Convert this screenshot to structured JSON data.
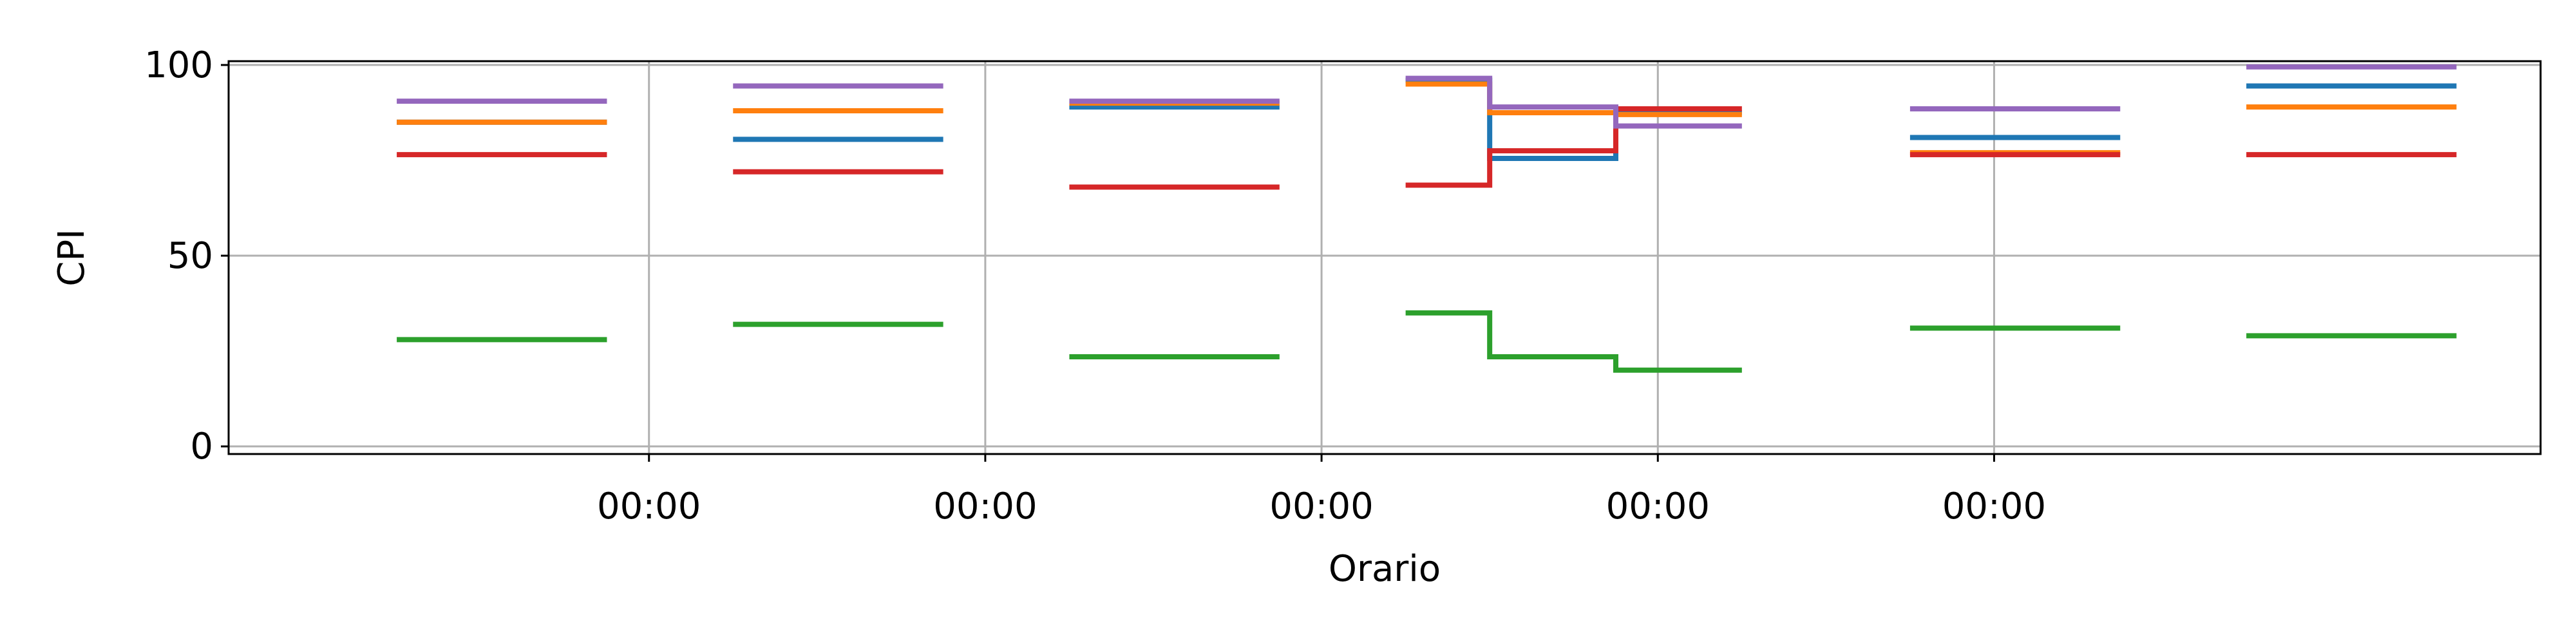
{
  "chart_data": {
    "type": "line",
    "step": true,
    "xlabel": "Orario",
    "ylabel": "CPI",
    "ylim": [
      0,
      100
    ],
    "yticks": [
      0,
      50,
      100
    ],
    "xticks": [
      "00:00",
      "00:00",
      "00:00",
      "00:00",
      "00:00"
    ],
    "grid": true,
    "colors": [
      "#1f77b4",
      "#ff7f0e",
      "#2ca02c",
      "#d62728",
      "#9467bd"
    ],
    "series": [
      {
        "segments": [
          [
            [
              -0.5,
              85
            ],
            [
              0.75,
              85
            ]
          ],
          [
            [
              1.5,
              80.5
            ],
            [
              2.75,
              80.5
            ]
          ],
          [
            [
              3.5,
              89
            ],
            [
              4.75,
              89
            ]
          ],
          [
            [
              5.5,
              96
            ],
            [
              6.0,
              96
            ],
            [
              6.0,
              75.5
            ],
            [
              6.75,
              75.5
            ],
            [
              6.75,
              87.5
            ],
            [
              7.5,
              87.5
            ]
          ],
          [
            [
              8.5,
              81
            ],
            [
              9.75,
              81
            ]
          ],
          [
            [
              10.5,
              94.5
            ],
            [
              11.75,
              94.5
            ]
          ]
        ]
      },
      {
        "segments": [
          [
            [
              -0.5,
              85
            ],
            [
              0.75,
              85
            ]
          ],
          [
            [
              1.5,
              88
            ],
            [
              2.75,
              88
            ]
          ],
          [
            [
              3.5,
              90
            ],
            [
              4.75,
              90
            ]
          ],
          [
            [
              5.5,
              95
            ],
            [
              6.0,
              95
            ],
            [
              6.0,
              87.5
            ],
            [
              6.75,
              87.5
            ],
            [
              6.75,
              87
            ],
            [
              7.5,
              87
            ]
          ],
          [
            [
              8.5,
              77
            ],
            [
              9.75,
              77
            ]
          ],
          [
            [
              10.5,
              89
            ],
            [
              11.75,
              89
            ]
          ]
        ]
      },
      {
        "segments": [
          [
            [
              -0.5,
              28
            ],
            [
              0.75,
              28
            ]
          ],
          [
            [
              1.5,
              32
            ],
            [
              2.75,
              32
            ]
          ],
          [
            [
              3.5,
              23.5
            ],
            [
              4.75,
              23.5
            ]
          ],
          [
            [
              5.5,
              35
            ],
            [
              6.0,
              35
            ],
            [
              6.0,
              23.5
            ],
            [
              6.75,
              23.5
            ],
            [
              6.75,
              20
            ],
            [
              7.5,
              20
            ]
          ],
          [
            [
              8.5,
              31
            ],
            [
              9.75,
              31
            ]
          ],
          [
            [
              10.5,
              29
            ],
            [
              11.75,
              29
            ]
          ]
        ]
      },
      {
        "segments": [
          [
            [
              -0.5,
              76.5
            ],
            [
              0.75,
              76.5
            ]
          ],
          [
            [
              1.5,
              72
            ],
            [
              2.75,
              72
            ]
          ],
          [
            [
              3.5,
              68
            ],
            [
              4.75,
              68
            ]
          ],
          [
            [
              5.5,
              68.5
            ],
            [
              6.0,
              68.5
            ],
            [
              6.0,
              77.5
            ],
            [
              6.75,
              77.5
            ],
            [
              6.75,
              88.5
            ],
            [
              7.5,
              88.5
            ]
          ],
          [
            [
              8.5,
              76.5
            ],
            [
              9.75,
              76.5
            ]
          ],
          [
            [
              10.5,
              76.5
            ],
            [
              11.75,
              76.5
            ]
          ]
        ]
      },
      {
        "segments": [
          [
            [
              -0.5,
              90.5
            ],
            [
              0.75,
              90.5
            ]
          ],
          [
            [
              1.5,
              94.5
            ],
            [
              2.75,
              94.5
            ]
          ],
          [
            [
              3.5,
              90.5
            ],
            [
              4.75,
              90.5
            ]
          ],
          [
            [
              5.5,
              96.5
            ],
            [
              6.0,
              96.5
            ],
            [
              6.0,
              89
            ],
            [
              6.75,
              89
            ],
            [
              6.75,
              84
            ],
            [
              7.5,
              84
            ]
          ],
          [
            [
              8.5,
              88.5
            ],
            [
              9.75,
              88.5
            ]
          ],
          [
            [
              10.5,
              99.5
            ],
            [
              11.75,
              99.5
            ]
          ]
        ]
      }
    ]
  }
}
